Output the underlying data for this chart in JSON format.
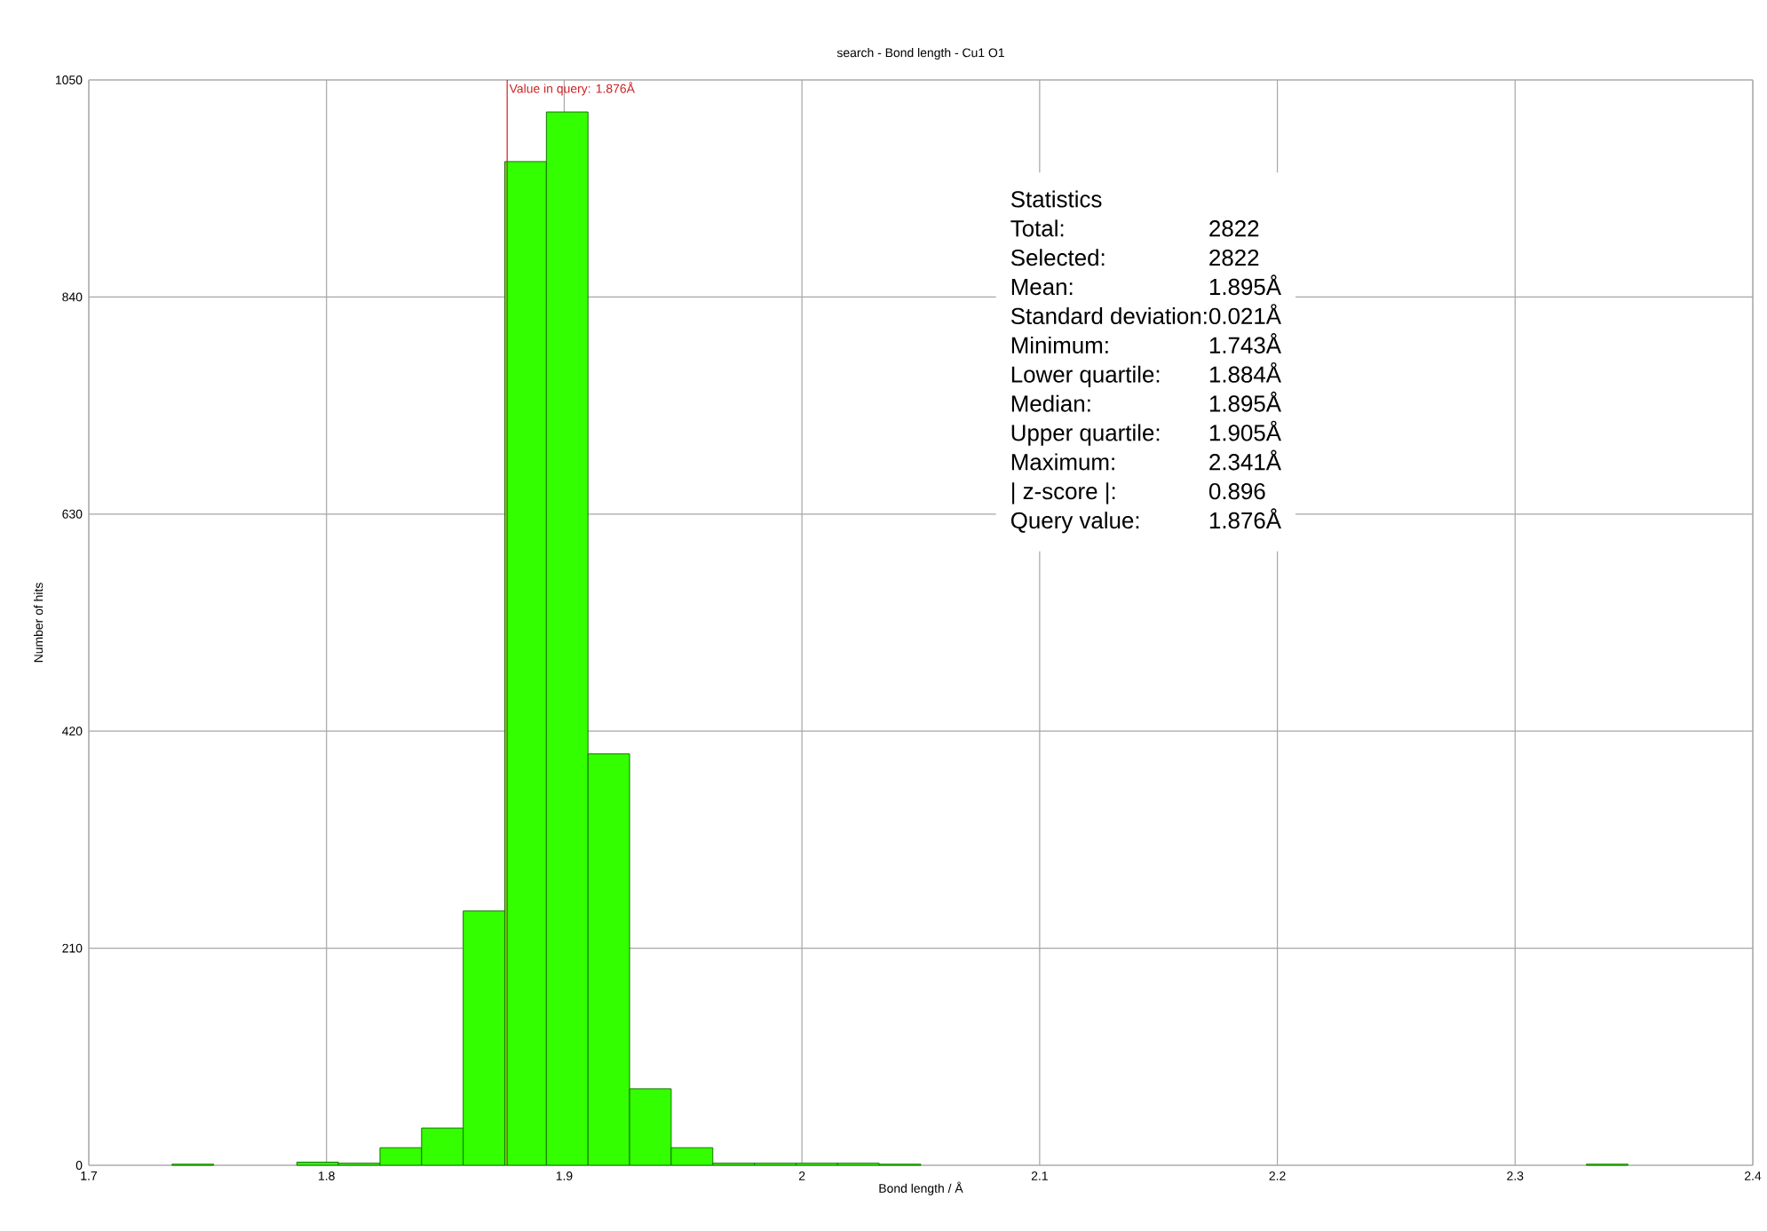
{
  "chart_data": {
    "type": "histogram",
    "title": "search - Bond length - Cu1 O1",
    "xlabel": "Bond length / Å",
    "ylabel": "Number of hits",
    "bins": [
      1.735,
      1.7525,
      1.77,
      1.7875,
      1.805,
      1.8225,
      1.84,
      1.8575,
      1.875,
      1.8925,
      1.91,
      1.9275,
      1.945,
      1.9625,
      1.98,
      1.9975,
      2.015,
      2.0325,
      2.05,
      2.0675,
      2.085,
      2.1025,
      2.12,
      2.1375,
      2.155,
      2.1725,
      2.19,
      2.2075,
      2.225,
      2.2425,
      2.26,
      2.2775,
      2.295,
      2.3125,
      2.33,
      2.3475
    ],
    "values": [
      1,
      null,
      null,
      3,
      2,
      17,
      36,
      246,
      971,
      1019,
      398,
      74,
      17,
      2,
      2,
      2,
      2,
      1,
      null,
      null,
      null,
      null,
      null,
      null,
      null,
      null,
      null,
      null,
      null,
      null,
      null,
      null,
      null,
      null,
      1
    ],
    "color": "#33ff00",
    "xlim": [
      1.7,
      2.4
    ],
    "xticks": [
      1.7,
      1.8,
      1.9,
      2,
      2.1,
      2.2,
      2.3,
      2.4
    ],
    "ylim": [
      0,
      1050
    ],
    "yticks": [
      0,
      210,
      420,
      630,
      840,
      1050
    ],
    "grid": true,
    "ref_lines": [
      {
        "axis": "x",
        "value": 1.876,
        "label": "Value in query: 1.876Å",
        "color": "#cc2222"
      }
    ],
    "annotations": [
      "Statistics",
      "Total:",
      "2822",
      "Selected:",
      "2822",
      "Mean:",
      "1.895Å",
      "Standard deviation:",
      "0.021Å",
      "Minimum:",
      "1.743Å",
      "Lower quartile:",
      "1.884Å",
      "Median:",
      "1.895Å",
      "Upper quartile:",
      "1.905Å",
      "Maximum:",
      "2.341Å",
      "| z-score |:",
      "0.896",
      "Query value:",
      "1.876Å"
    ]
  }
}
